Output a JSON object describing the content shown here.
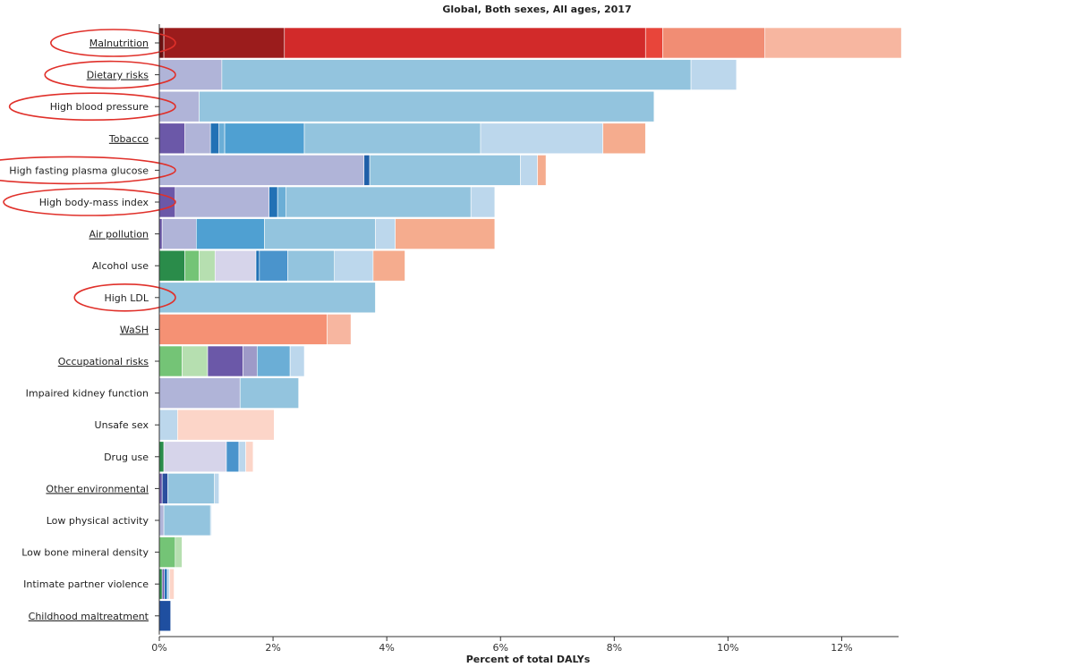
{
  "chart_data": {
    "type": "bar",
    "orientation": "horizontal",
    "stacked": true,
    "title": "Global, Both sexes, All ages, 2017",
    "xlabel": "Percent of total DALYs",
    "xlim": [
      0,
      13
    ],
    "xticks": [
      0,
      2,
      4,
      6,
      8,
      10,
      12
    ],
    "xtick_labels": [
      "0%",
      "2%",
      "4%",
      "6%",
      "8%",
      "10%",
      "12%"
    ],
    "legend": "none",
    "grid": false,
    "categories": [
      {
        "label": "Malnutrition",
        "underlined": true,
        "circled": true,
        "segments": [
          {
            "value": 0.08,
            "color": "#6b1010"
          },
          {
            "value": 2.12,
            "color": "#9b1c1c"
          },
          {
            "value": 6.35,
            "color": "#d22a2a"
          },
          {
            "value": 0.3,
            "color": "#e8453a"
          },
          {
            "value": 1.8,
            "color": "#f18d74"
          },
          {
            "value": 2.4,
            "color": "#f7b6a0"
          }
        ]
      },
      {
        "label": "Dietary risks",
        "underlined": true,
        "circled": true,
        "segments": [
          {
            "value": 1.1,
            "color": "#b0b4d8"
          },
          {
            "value": 8.25,
            "color": "#93c4de"
          },
          {
            "value": 0.8,
            "color": "#bcd7ec"
          }
        ]
      },
      {
        "label": "High blood pressure",
        "underlined": false,
        "circled": true,
        "segments": [
          {
            "value": 0.7,
            "color": "#b0b4d8"
          },
          {
            "value": 8.0,
            "color": "#93c4de"
          }
        ]
      },
      {
        "label": "Tobacco",
        "underlined": true,
        "circled": false,
        "segments": [
          {
            "value": 0.45,
            "color": "#6b58a8"
          },
          {
            "value": 0.45,
            "color": "#b0b4d8"
          },
          {
            "value": 0.15,
            "color": "#2171b5"
          },
          {
            "value": 0.1,
            "color": "#6baed6"
          },
          {
            "value": 1.4,
            "color": "#4fa0d2"
          },
          {
            "value": 3.1,
            "color": "#93c4de"
          },
          {
            "value": 2.15,
            "color": "#bcd7ec"
          },
          {
            "value": 0.75,
            "color": "#f5ac8e"
          }
        ]
      },
      {
        "label": "High fasting plasma glucose",
        "underlined": false,
        "circled": true,
        "segments": [
          {
            "value": 3.6,
            "color": "#b0b4d8"
          },
          {
            "value": 0.1,
            "color": "#1f5fa8"
          },
          {
            "value": 2.65,
            "color": "#93c4de"
          },
          {
            "value": 0.3,
            "color": "#bcd7ec"
          },
          {
            "value": 0.15,
            "color": "#f5ac8e"
          }
        ]
      },
      {
        "label": "High body-mass index",
        "underlined": false,
        "circled": true,
        "segments": [
          {
            "value": 0.28,
            "color": "#6b58a8"
          },
          {
            "value": 1.65,
            "color": "#b0b4d8"
          },
          {
            "value": 0.15,
            "color": "#2171b5"
          },
          {
            "value": 0.15,
            "color": "#6baed6"
          },
          {
            "value": 3.25,
            "color": "#93c4de"
          },
          {
            "value": 0.42,
            "color": "#bcd7ec"
          }
        ]
      },
      {
        "label": "Air pollution",
        "underlined": true,
        "circled": false,
        "segments": [
          {
            "value": 0.05,
            "color": "#6b58a8"
          },
          {
            "value": 0.6,
            "color": "#b0b4d8"
          },
          {
            "value": 1.2,
            "color": "#4fa0d2"
          },
          {
            "value": 1.95,
            "color": "#93c4de"
          },
          {
            "value": 0.35,
            "color": "#bcd7ec"
          },
          {
            "value": 1.75,
            "color": "#f5ac8e"
          }
        ]
      },
      {
        "label": "Alcohol use",
        "underlined": false,
        "circled": false,
        "segments": [
          {
            "value": 0.45,
            "color": "#2a8c4a"
          },
          {
            "value": 0.25,
            "color": "#74c476"
          },
          {
            "value": 0.28,
            "color": "#b6dfb0"
          },
          {
            "value": 0.72,
            "color": "#d6d4ea"
          },
          {
            "value": 0.06,
            "color": "#2171b5"
          },
          {
            "value": 0.5,
            "color": "#4a94cc"
          },
          {
            "value": 0.82,
            "color": "#93c4de"
          },
          {
            "value": 0.68,
            "color": "#bcd7ec"
          },
          {
            "value": 0.56,
            "color": "#f5ac8e"
          }
        ]
      },
      {
        "label": "High LDL",
        "underlined": false,
        "circled": true,
        "segments": [
          {
            "value": 3.8,
            "color": "#93c4de"
          }
        ]
      },
      {
        "label": "WaSH",
        "underlined": true,
        "circled": false,
        "segments": [
          {
            "value": 2.95,
            "color": "#f59174"
          },
          {
            "value": 0.42,
            "color": "#f7b6a0"
          }
        ]
      },
      {
        "label": "Occupational risks",
        "underlined": true,
        "circled": false,
        "segments": [
          {
            "value": 0.4,
            "color": "#74c476"
          },
          {
            "value": 0.45,
            "color": "#b6dfb0"
          },
          {
            "value": 0.62,
            "color": "#6b58a8"
          },
          {
            "value": 0.25,
            "color": "#9e9ac8"
          },
          {
            "value": 0.58,
            "color": "#6baed6"
          },
          {
            "value": 0.25,
            "color": "#bcd7ec"
          }
        ]
      },
      {
        "label": "Impaired kidney function",
        "underlined": false,
        "circled": false,
        "segments": [
          {
            "value": 1.42,
            "color": "#b0b4d8"
          },
          {
            "value": 1.03,
            "color": "#93c4de"
          }
        ]
      },
      {
        "label": "Unsafe sex",
        "underlined": false,
        "circled": false,
        "segments": [
          {
            "value": 0.32,
            "color": "#bcd7ec"
          },
          {
            "value": 1.7,
            "color": "#fcd5c8"
          }
        ]
      },
      {
        "label": "Drug use",
        "underlined": false,
        "circled": false,
        "segments": [
          {
            "value": 0.08,
            "color": "#2a8c4a"
          },
          {
            "value": 1.1,
            "color": "#d6d4ea"
          },
          {
            "value": 0.22,
            "color": "#4a94cc"
          },
          {
            "value": 0.12,
            "color": "#bcd7ec"
          },
          {
            "value": 0.13,
            "color": "#fcd5c8"
          }
        ]
      },
      {
        "label": "Other environmental",
        "underlined": true,
        "circled": false,
        "segments": [
          {
            "value": 0.05,
            "color": "#6b58a8"
          },
          {
            "value": 0.1,
            "color": "#2b4f9e"
          },
          {
            "value": 0.82,
            "color": "#93c4de"
          },
          {
            "value": 0.08,
            "color": "#bcd7ec"
          }
        ]
      },
      {
        "label": "Low physical activity",
        "underlined": false,
        "circled": false,
        "segments": [
          {
            "value": 0.08,
            "color": "#b0b4d8"
          },
          {
            "value": 0.82,
            "color": "#93c4de"
          },
          {
            "value": 0.02,
            "color": "#bcd7ec"
          }
        ]
      },
      {
        "label": "Low bone mineral density",
        "underlined": false,
        "circled": false,
        "segments": [
          {
            "value": 0.28,
            "color": "#74c476"
          },
          {
            "value": 0.12,
            "color": "#b6dfb0"
          }
        ]
      },
      {
        "label": "Intimate partner violence",
        "underlined": false,
        "circled": false,
        "segments": [
          {
            "value": 0.05,
            "color": "#2a8c4a"
          },
          {
            "value": 0.04,
            "color": "#6b58a8"
          },
          {
            "value": 0.05,
            "color": "#2171b5"
          },
          {
            "value": 0.04,
            "color": "#bcd7ec"
          },
          {
            "value": 0.08,
            "color": "#fcd5c8"
          }
        ]
      },
      {
        "label": "Childhood maltreatment",
        "underlined": true,
        "circled": false,
        "segments": [
          {
            "value": 0.2,
            "color": "#1f4fa0"
          }
        ]
      }
    ]
  }
}
